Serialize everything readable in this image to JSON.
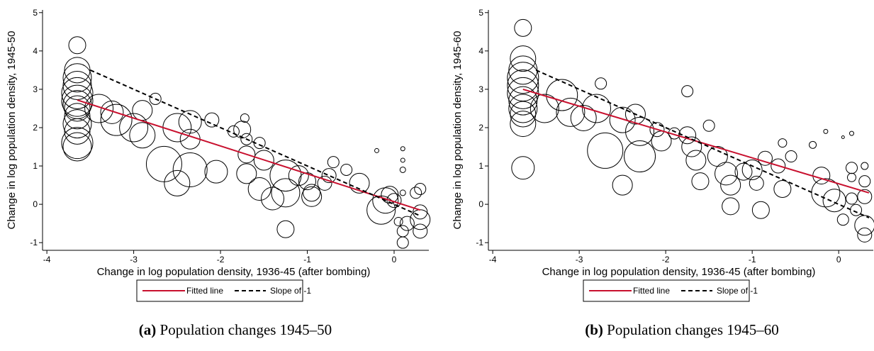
{
  "chart_data": [
    {
      "type": "scatter",
      "caption": {
        "label": "(a)",
        "text": "Population changes 1945–50"
      },
      "xlabel": "Change in log population density, 1936-45 (after bombing)",
      "ylabel": "Change in log population density, 1945-50",
      "xlim": [
        -4.05,
        0.4
      ],
      "ylim": [
        -1.2,
        5.07
      ],
      "xticks": [
        -4,
        -3,
        -2,
        -1,
        0
      ],
      "yticks": [
        -1,
        0,
        1,
        2,
        3,
        4,
        5
      ],
      "points": {
        "x": [
          -3.65,
          -3.65,
          -3.65,
          -3.65,
          -3.65,
          -3.65,
          -3.65,
          -3.65,
          -3.65,
          -3.65,
          -3.65,
          -3.65,
          -3.65,
          -3.4,
          -3.2,
          -3.25,
          -3.0,
          -2.9,
          -2.9,
          -2.75,
          -2.65,
          -2.5,
          -2.5,
          -2.35,
          -2.35,
          -2.35,
          -2.1,
          -2.05,
          -1.85,
          -1.75,
          -1.72,
          -1.7,
          -1.7,
          -1.7,
          -1.55,
          -1.5,
          -1.55,
          -1.4,
          -1.25,
          -1.25,
          -1.25,
          -1.1,
          -1.0,
          -0.95,
          -0.95,
          -0.8,
          -0.75,
          -0.7,
          -0.55,
          -0.4,
          -0.2,
          -0.15,
          -0.1,
          -0.05,
          0.0,
          0.1,
          0.1,
          0.1,
          0.1,
          0.15,
          0.05,
          0.1,
          0.25,
          0.3,
          0.3,
          0.3,
          0.3,
          0.1
        ],
        "y": [
          4.15,
          3.5,
          3.3,
          3.1,
          2.9,
          2.7,
          2.6,
          2.5,
          2.3,
          2.1,
          1.9,
          1.6,
          1.5,
          2.5,
          2.2,
          2.4,
          2.0,
          1.8,
          2.45,
          2.75,
          1.05,
          2.0,
          0.55,
          2.15,
          1.7,
          0.9,
          2.2,
          0.85,
          1.9,
          1.95,
          2.25,
          1.7,
          1.3,
          0.8,
          1.6,
          1.15,
          0.4,
          0.15,
          -0.65,
          0.75,
          0.3,
          0.75,
          0.6,
          0.2,
          0.3,
          0.55,
          0.75,
          1.1,
          0.9,
          0.55,
          1.4,
          -0.15,
          0.1,
          0.25,
          0.1,
          1.45,
          1.15,
          0.9,
          -1.0,
          -0.5,
          -0.45,
          0.3,
          0.3,
          0.4,
          -0.2,
          -0.4,
          -0.7,
          -0.7
        ],
        "size": [
          12,
          18,
          20,
          20,
          22,
          22,
          20,
          18,
          18,
          20,
          18,
          22,
          20,
          20,
          22,
          16,
          20,
          18,
          14,
          8,
          25,
          20,
          18,
          16,
          14,
          24,
          10,
          16,
          8,
          12,
          6,
          8,
          12,
          14,
          8,
          14,
          16,
          16,
          12,
          22,
          20,
          14,
          12,
          14,
          12,
          10,
          10,
          8,
          8,
          14,
          3,
          20,
          18,
          12,
          10,
          3,
          3,
          4,
          8,
          10,
          6,
          4,
          8,
          8,
          10,
          14,
          10,
          8
        ]
      },
      "lines": [
        {
          "name": "Fitted line",
          "color": "#c8102e",
          "dash": false,
          "x": [
            -3.65,
            0.3
          ],
          "y": [
            2.72,
            -0.15
          ]
        },
        {
          "name": "Slope of -1",
          "color": "#000000",
          "dash": true,
          "x": [
            -3.5,
            0.3
          ],
          "y": [
            3.5,
            -0.3
          ]
        }
      ]
    },
    {
      "type": "scatter",
      "caption": {
        "label": "(b)",
        "text": "Population changes 1945–60"
      },
      "xlabel": "Change in log population density, 1936-45 (after bombing)",
      "ylabel": "Change in log population density, 1945-60",
      "xlim": [
        -4.05,
        0.4
      ],
      "ylim": [
        -1.2,
        5.07
      ],
      "xticks": [
        -4,
        -3,
        -2,
        -1,
        0
      ],
      "yticks": [
        -1,
        0,
        1,
        2,
        3,
        4,
        5
      ],
      "points": {
        "x": [
          -3.65,
          -3.65,
          -3.65,
          -3.65,
          -3.65,
          -3.65,
          -3.65,
          -3.65,
          -3.65,
          -3.65,
          -3.65,
          -3.4,
          -3.2,
          -3.1,
          -2.95,
          -2.8,
          -2.75,
          -2.7,
          -2.5,
          -2.5,
          -2.35,
          -2.3,
          -2.3,
          -2.1,
          -2.05,
          -1.9,
          -1.75,
          -1.75,
          -1.7,
          -1.65,
          -1.6,
          -1.5,
          -1.4,
          -1.3,
          -1.25,
          -1.25,
          -1.1,
          -1.0,
          -0.95,
          -0.9,
          -0.85,
          -0.7,
          -0.65,
          -0.65,
          -0.55,
          -0.3,
          -0.2,
          -0.15,
          -0.05,
          -0.15,
          0.05,
          0.15,
          0.15,
          0.15,
          0.2,
          0.05,
          0.3,
          0.3,
          0.3,
          0.3,
          0.15,
          0.3
        ],
        "y": [
          4.6,
          3.8,
          3.5,
          3.3,
          3.1,
          2.9,
          2.7,
          2.5,
          2.35,
          2.1,
          0.95,
          2.5,
          2.85,
          2.4,
          2.25,
          2.5,
          3.15,
          1.4,
          2.2,
          0.5,
          2.35,
          1.9,
          1.25,
          1.95,
          1.65,
          1.85,
          2.95,
          1.8,
          1.5,
          1.15,
          0.6,
          2.05,
          1.25,
          0.8,
          0.5,
          -0.05,
          0.85,
          0.9,
          0.55,
          -0.15,
          1.2,
          1.0,
          1.6,
          0.4,
          1.25,
          1.55,
          0.75,
          0.3,
          0.1,
          1.9,
          1.75,
          1.85,
          0.95,
          0.15,
          -0.15,
          -0.4,
          0.6,
          0.2,
          -0.55,
          -0.8,
          0.7,
          1.0
        ],
        "size": [
          12,
          18,
          20,
          22,
          22,
          22,
          20,
          20,
          18,
          18,
          16,
          20,
          22,
          20,
          18,
          20,
          8,
          25,
          18,
          14,
          14,
          20,
          22,
          10,
          14,
          8,
          8,
          12,
          14,
          14,
          12,
          8,
          14,
          16,
          14,
          12,
          12,
          14,
          10,
          12,
          10,
          10,
          6,
          12,
          8,
          5,
          12,
          20,
          16,
          3,
          2,
          3,
          8,
          8,
          8,
          8,
          8,
          10,
          14,
          10,
          6,
          5
        ]
      },
      "lines": [
        {
          "name": "Fitted line",
          "color": "#c8102e",
          "dash": false,
          "x": [
            -3.65,
            0.35
          ],
          "y": [
            3.0,
            0.3
          ]
        },
        {
          "name": "Slope of -1",
          "color": "#000000",
          "dash": true,
          "x": [
            -3.5,
            0.35
          ],
          "y": [
            3.5,
            -0.35
          ]
        }
      ]
    }
  ]
}
